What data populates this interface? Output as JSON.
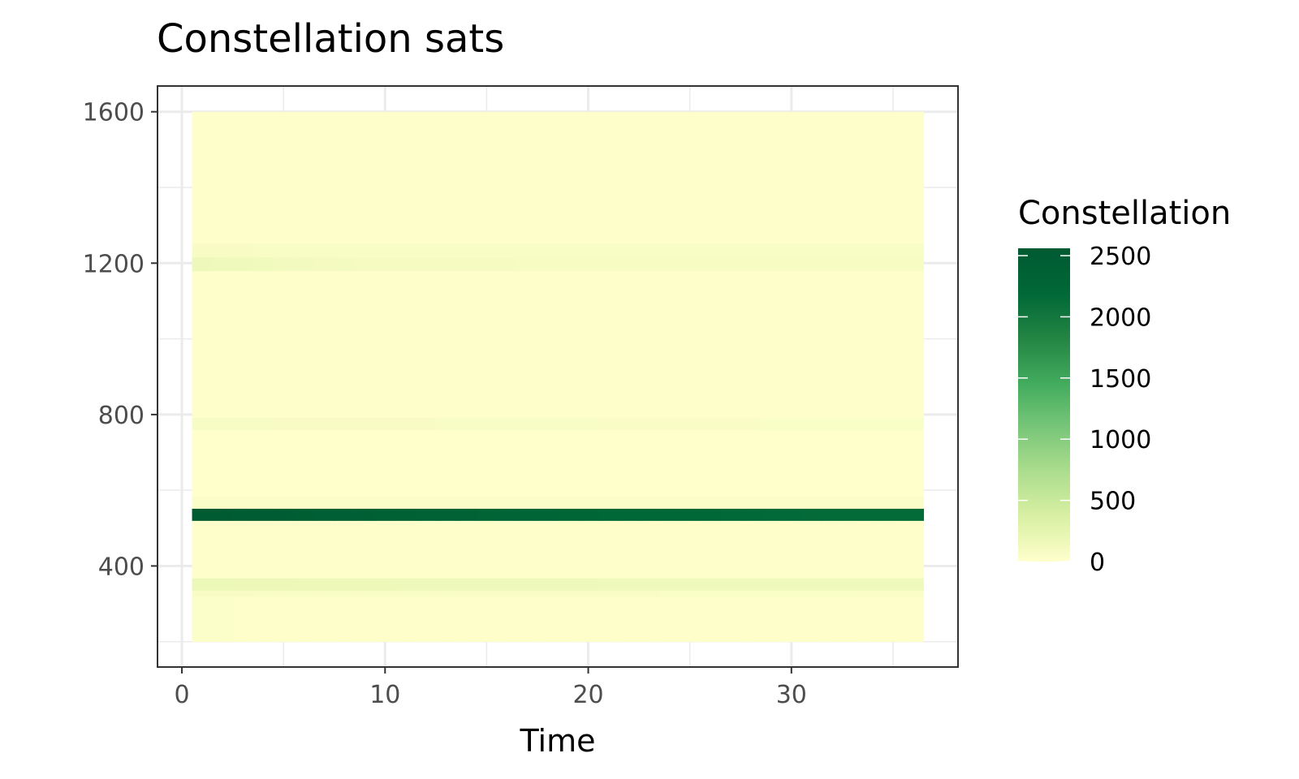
{
  "chart_data": {
    "type": "heatmap",
    "title": "Constellation sats",
    "xlabel": "Time",
    "ylabel": "",
    "xlim": [
      -1.2,
      38.2
    ],
    "ylim": [
      133,
      1668
    ],
    "x_ticks": [
      0,
      10,
      20,
      30
    ],
    "x_tick_labels": [
      "0",
      "10",
      "20",
      "30"
    ],
    "y_ticks": [
      400,
      800,
      1200,
      1600
    ],
    "y_tick_labels": [
      "400",
      "800",
      "1200",
      "1600"
    ],
    "x_range": [
      0.5,
      36.5
    ],
    "time_steps": [
      1,
      2,
      3,
      4,
      5,
      6,
      7,
      8,
      9,
      10,
      11,
      12,
      13,
      14,
      15,
      16,
      17,
      18,
      19,
      20,
      21,
      22,
      23,
      24,
      25,
      26,
      27,
      28,
      29,
      30,
      31,
      32,
      33,
      34,
      35,
      36
    ],
    "grid": true,
    "bands": [
      {
        "y0": 200,
        "y1": 320,
        "values": [
          25,
          25,
          20,
          20,
          20,
          20,
          20,
          20,
          20,
          20,
          20,
          20,
          20,
          20,
          20,
          20,
          20,
          20,
          20,
          20,
          15,
          15,
          15,
          15,
          15,
          15,
          15,
          15,
          15,
          15,
          15,
          15,
          15,
          15,
          15,
          15
        ]
      },
      {
        "y0": 320,
        "y1": 336,
        "values": [
          70,
          70,
          70,
          65,
          65,
          65,
          65,
          65,
          65,
          65,
          65,
          65,
          65,
          60,
          60,
          60,
          60,
          60,
          60,
          60,
          60,
          60,
          60,
          55,
          55,
          55,
          55,
          55,
          55,
          55,
          55,
          55,
          55,
          50,
          50,
          50
        ]
      },
      {
        "y0": 336,
        "y1": 368,
        "values": [
          180,
          180,
          175,
          175,
          175,
          170,
          170,
          170,
          170,
          170,
          165,
          165,
          165,
          165,
          165,
          160,
          160,
          160,
          160,
          160,
          155,
          155,
          155,
          155,
          155,
          150,
          150,
          150,
          150,
          150,
          145,
          145,
          145,
          145,
          145,
          140
        ]
      },
      {
        "y0": 368,
        "y1": 520,
        "values": [
          15,
          15,
          15,
          15,
          15,
          15,
          15,
          15,
          15,
          15,
          15,
          15,
          15,
          15,
          15,
          15,
          15,
          15,
          15,
          15,
          15,
          15,
          15,
          15,
          15,
          15,
          15,
          15,
          15,
          15,
          15,
          15,
          15,
          15,
          15,
          15
        ]
      },
      {
        "y0": 520,
        "y1": 552,
        "values": [
          2560,
          2540,
          2520,
          2500,
          2480,
          2460,
          2440,
          2420,
          2400,
          2385,
          2370,
          2355,
          2340,
          2325,
          2310,
          2295,
          2280,
          2265,
          2250,
          2240,
          2230,
          2220,
          2210,
          2200,
          2195,
          2190,
          2185,
          2180,
          2175,
          2170,
          2165,
          2160,
          2160,
          2160,
          2160,
          2160
        ]
      },
      {
        "y0": 552,
        "y1": 584,
        "values": [
          45,
          45,
          45,
          40,
          40,
          40,
          40,
          40,
          40,
          40,
          40,
          40,
          40,
          40,
          40,
          40,
          40,
          40,
          40,
          40,
          40,
          40,
          40,
          40,
          40,
          40,
          40,
          40,
          40,
          40,
          40,
          40,
          40,
          40,
          40,
          40
        ]
      },
      {
        "y0": 584,
        "y1": 760,
        "values": [
          10,
          10,
          10,
          10,
          10,
          10,
          10,
          10,
          10,
          10,
          10,
          10,
          10,
          10,
          10,
          10,
          10,
          10,
          10,
          10,
          10,
          10,
          10,
          10,
          10,
          10,
          10,
          10,
          10,
          10,
          10,
          10,
          10,
          10,
          10,
          10
        ]
      },
      {
        "y0": 760,
        "y1": 792,
        "values": [
          75,
          75,
          75,
          75,
          70,
          70,
          70,
          70,
          70,
          70,
          70,
          70,
          65,
          65,
          65,
          65,
          65,
          65,
          65,
          65,
          60,
          60,
          60,
          60,
          60,
          60,
          60,
          60,
          55,
          55,
          55,
          55,
          55,
          55,
          55,
          55
        ]
      },
      {
        "y0": 792,
        "y1": 1180,
        "values": [
          15,
          15,
          15,
          15,
          15,
          15,
          15,
          15,
          15,
          15,
          15,
          15,
          15,
          15,
          15,
          15,
          15,
          15,
          15,
          15,
          15,
          15,
          15,
          15,
          15,
          15,
          15,
          15,
          15,
          15,
          15,
          15,
          15,
          15,
          15,
          15
        ]
      },
      {
        "y0": 1180,
        "y1": 1216,
        "values": [
          160,
          150,
          140,
          130,
          120,
          115,
          110,
          105,
          100,
          100,
          95,
          95,
          90,
          90,
          90,
          90,
          85,
          85,
          85,
          85,
          85,
          85,
          80,
          80,
          80,
          80,
          80,
          80,
          80,
          80,
          80,
          80,
          80,
          80,
          80,
          80
        ]
      },
      {
        "y0": 1216,
        "y1": 1252,
        "values": [
          70,
          70,
          70,
          65,
          65,
          65,
          65,
          65,
          65,
          65,
          65,
          65,
          65,
          65,
          65,
          65,
          65,
          65,
          65,
          65,
          65,
          65,
          65,
          65,
          65,
          65,
          65,
          65,
          65,
          65,
          65,
          65,
          65,
          65,
          65,
          65
        ]
      },
      {
        "y0": 1252,
        "y1": 1600,
        "values": [
          20,
          20,
          20,
          20,
          20,
          20,
          20,
          15,
          15,
          15,
          15,
          15,
          15,
          15,
          15,
          15,
          15,
          15,
          15,
          15,
          15,
          15,
          15,
          15,
          15,
          15,
          15,
          15,
          15,
          15,
          15,
          15,
          15,
          15,
          15,
          15
        ]
      }
    ],
    "legend": {
      "title": "Constellation",
      "position": "right",
      "min": 0,
      "max": 2560,
      "breaks": [
        0,
        500,
        1000,
        1500,
        2000,
        2500
      ],
      "break_labels": [
        "0",
        "500",
        "1000",
        "1500",
        "2000",
        "2500"
      ],
      "colors": [
        "#ffffcc",
        "#d9f0a3",
        "#addd8e",
        "#78c679",
        "#41ab5d",
        "#238443",
        "#006837",
        "#005a32"
      ]
    }
  }
}
